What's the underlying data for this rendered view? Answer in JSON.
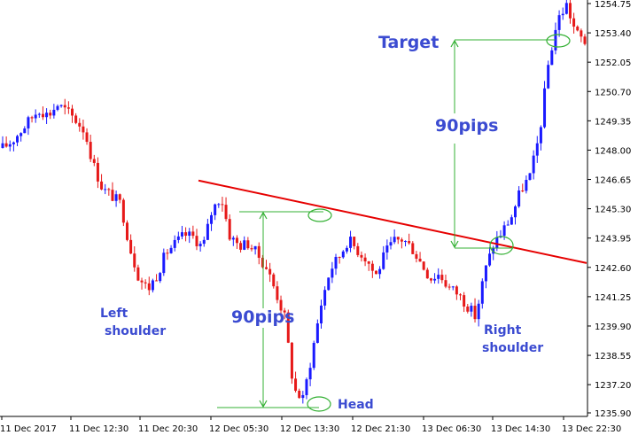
{
  "chart_data": {
    "type": "candlestick",
    "y_axis": {
      "position": "right",
      "ticks": [
        "1254.75",
        "1253.40",
        "1252.05",
        "1250.70",
        "1249.35",
        "1248.00",
        "1246.65",
        "1245.30",
        "1243.95",
        "1242.60",
        "1241.25",
        "1239.90",
        "1238.55",
        "1237.20",
        "1235.90"
      ],
      "ylim": [
        1235.9,
        1254.75
      ]
    },
    "x_axis": {
      "ticks": [
        "11 Dec 2017",
        "11 Dec 12:30",
        "11 Dec 20:30",
        "12 Dec 05:30",
        "12 Dec 13:30",
        "12 Dec 21:30",
        "13 Dec 06:30",
        "13 Dec 14:30",
        "13 Dec 22:30"
      ]
    },
    "colors": {
      "up": "#1a1aff",
      "down": "#e61919",
      "neckline": "#e60000",
      "measure": "#33b033",
      "annotation": "#3b4bd1"
    },
    "close_path": [
      1248.1,
      1248.4,
      1248.9,
      1249.4,
      1249.9,
      1249.6,
      1250.1,
      1249.8,
      1249.4,
      1248.9,
      1247.3,
      1246.2,
      1245.9,
      1245.5,
      1243.5,
      1242.1,
      1241.6,
      1242.3,
      1243.3,
      1243.7,
      1244.1,
      1244.0,
      1243.5,
      1245.2,
      1245.9,
      1244.0,
      1243.6,
      1243.7,
      1243.2,
      1242.6,
      1241.5,
      1240.3,
      1237.0,
      1236.5,
      1238.6,
      1240.9,
      1242.5,
      1243.1,
      1243.9,
      1243.4,
      1243.0,
      1242.2,
      1243.2,
      1243.8,
      1243.9,
      1243.5,
      1242.8,
      1242.1,
      1242.3,
      1241.7,
      1241.4,
      1240.9,
      1240.3,
      1242.4,
      1243.7,
      1244.3,
      1245.0,
      1246.2,
      1246.8,
      1248.7,
      1252.0,
      1254.0,
      1254.7,
      1253.4,
      1253.0
    ],
    "neckline": {
      "start": [
        "11 Dec 20:30",
        1246.6
      ],
      "end": [
        "13 Dec 22:30",
        1242.8
      ]
    },
    "annotations": {
      "left_shoulder": "Left\nshoulder",
      "head": "Head",
      "right_shoulder": "Right\nshoulder",
      "target": "Target",
      "pips_top": "90pips",
      "pips_bottom": "90pips"
    }
  }
}
